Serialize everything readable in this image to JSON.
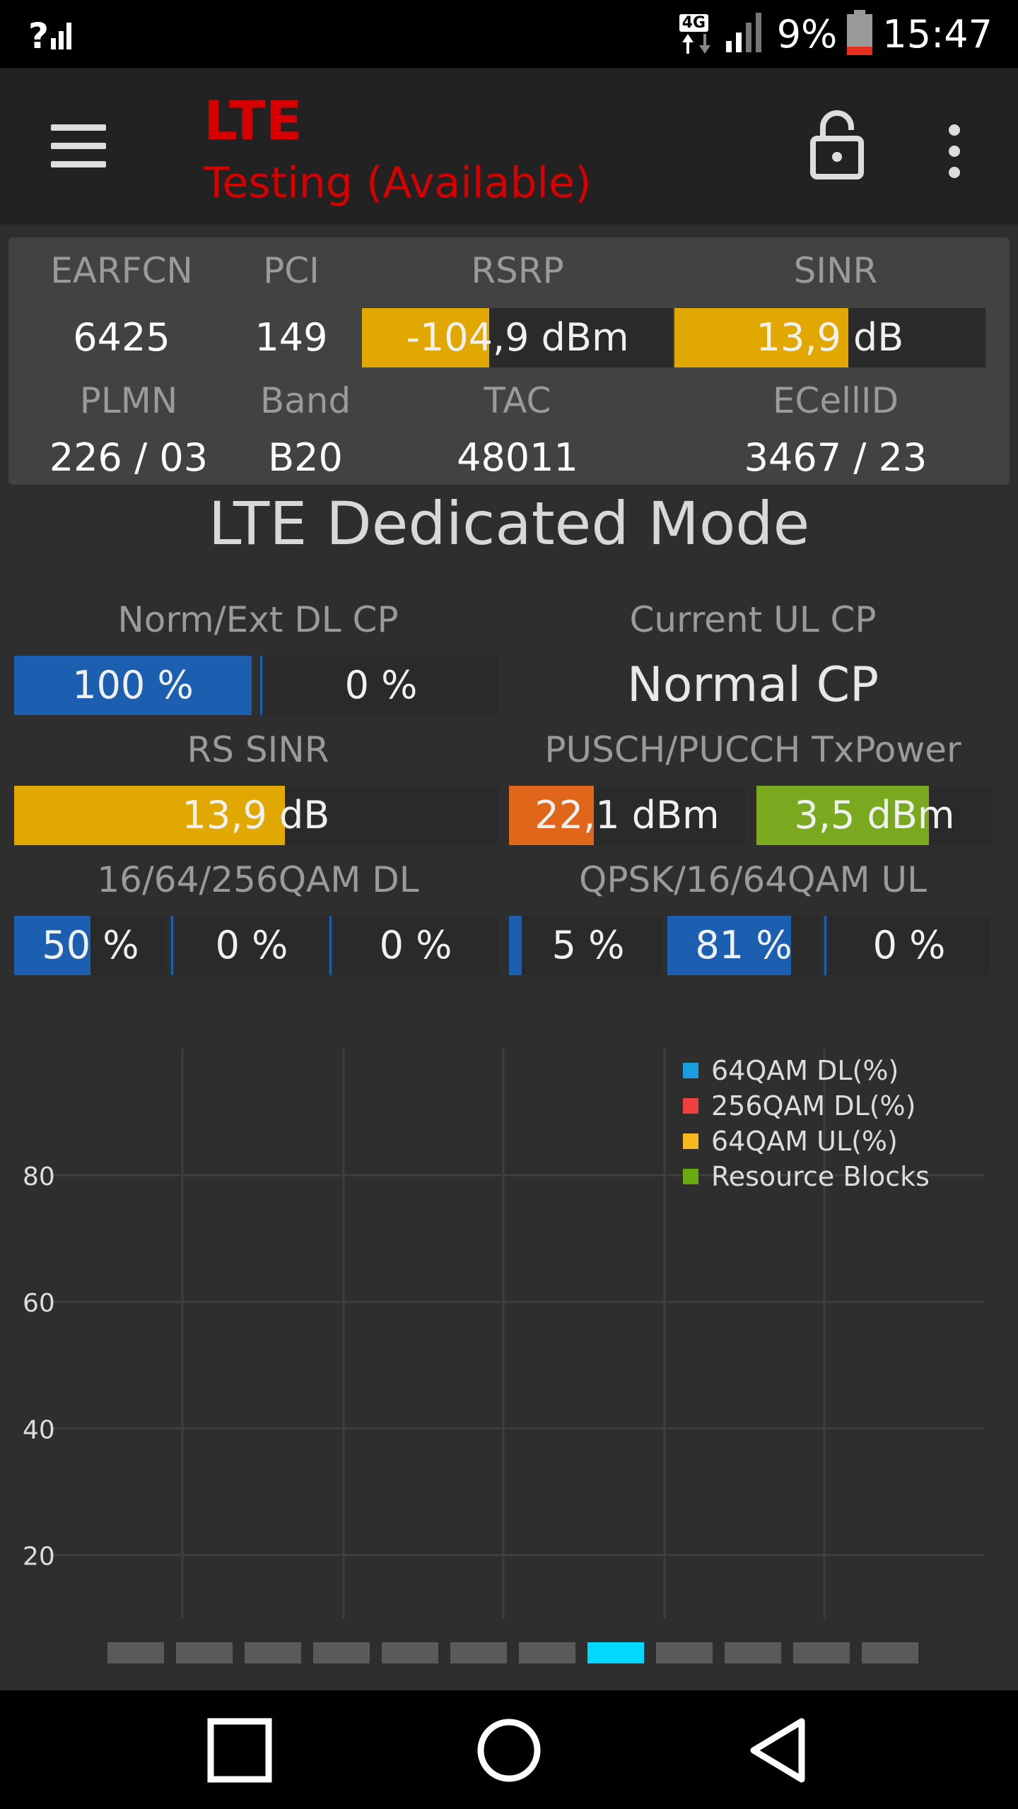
{
  "status_bar": {
    "signal_left_icon": "signal-question-icon",
    "network": "4G",
    "battery": "9%",
    "time": "15:47"
  },
  "app_bar": {
    "title": "LTE",
    "subtitle": "Testing (Available)"
  },
  "info": {
    "earfcn_label": "EARFCN",
    "earfcn": "6425",
    "pci_label": "PCI",
    "pci": "149",
    "rsrp_label": "RSRP",
    "rsrp": "-104,9 dBm",
    "rsrp_fill": 0.41,
    "sinr_label": "SINR",
    "sinr": "13,9 dB",
    "sinr_fill": 0.56,
    "plmn_label": "PLMN",
    "plmn": "226 / 03",
    "band_label": "Band",
    "band": "B20",
    "tac_label": "TAC",
    "tac": "48011",
    "ecellid_label": "ECellID",
    "ecellid": "3467 / 23"
  },
  "mode_title": "LTE Dedicated Mode",
  "dl_cp": {
    "label": "Norm/Ext DL CP",
    "norm": "100 %",
    "norm_fill": 1.0,
    "ext": "0 %",
    "ext_fill": 0
  },
  "ul_cp": {
    "label": "Current UL CP",
    "value": "Normal CP"
  },
  "rs_sinr": {
    "label": "RS SINR",
    "value": "13,9 dB",
    "fill": 0.56
  },
  "txpower": {
    "label": "PUSCH/PUCCH TxPower",
    "pusch": "22,1 dBm",
    "pusch_fill": 0.36,
    "pucch": "3,5 dBm",
    "pucch_fill": 0.73
  },
  "qam_dl": {
    "label": "16/64/256QAM DL",
    "values": [
      "50 %",
      "0 %",
      "0 %"
    ],
    "fills": [
      0.5,
      0,
      0
    ]
  },
  "qam_ul": {
    "label": "QPSK/16/64QAM UL",
    "values": [
      "5 %",
      "81 %",
      "0 %"
    ],
    "fills": [
      0.05,
      0.81,
      0
    ]
  },
  "colors": {
    "blue": "#1c5fb0",
    "yellow": "#e0a800",
    "orange": "#e0661a",
    "green": "#7aa81e",
    "cyan": "#00d8ff"
  },
  "chart_data": {
    "type": "line",
    "y_ticks": [
      "80",
      "60",
      "40",
      "20"
    ],
    "ylim": [
      10,
      100
    ],
    "series": [
      {
        "name": "64QAM DL(%)",
        "color": "#1a9ee0",
        "values": []
      },
      {
        "name": "256QAM DL(%)",
        "color": "#f04040",
        "values": []
      },
      {
        "name": "64QAM UL(%)",
        "color": "#f8b820",
        "values": []
      },
      {
        "name": "Resource Blocks",
        "color": "#6aaa10",
        "values": []
      }
    ],
    "grid": true,
    "legend": "top-right"
  },
  "pager": {
    "count": 12,
    "active_index": 7
  },
  "nav": {
    "recent_icon": "square-icon",
    "home_icon": "circle-icon",
    "back_icon": "triangle-back-icon"
  }
}
